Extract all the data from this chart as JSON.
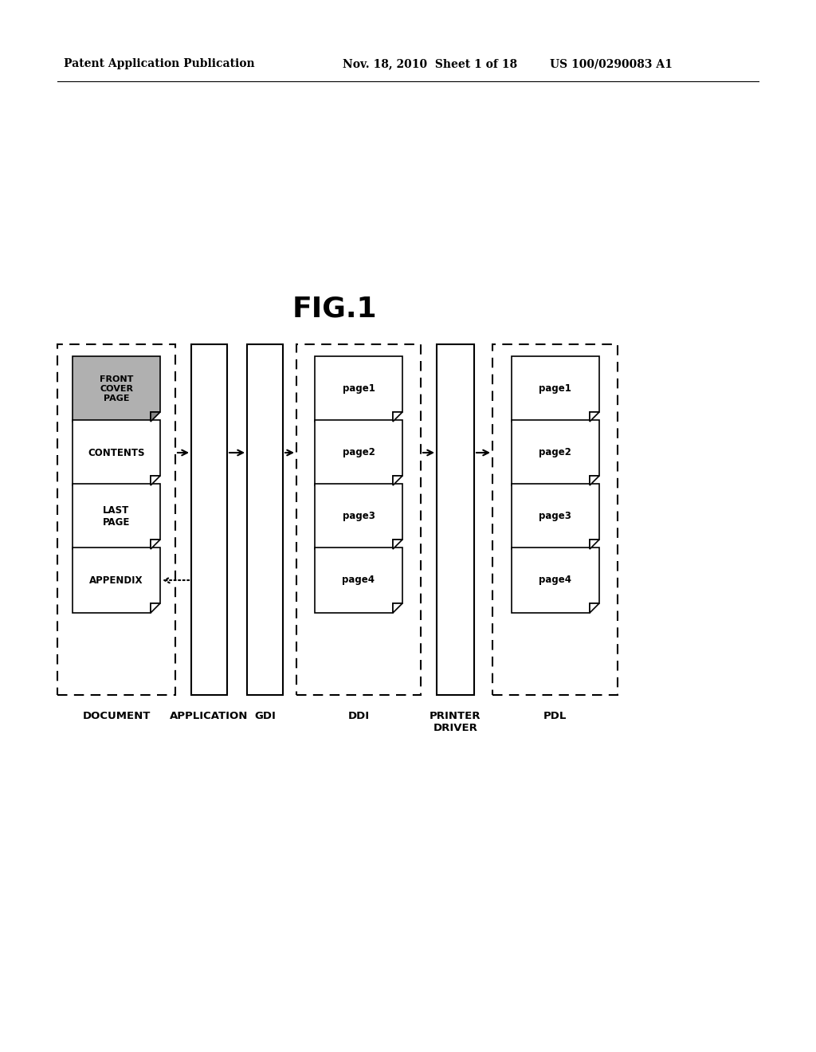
{
  "header_left": "Patent Application Publication",
  "header_mid": "Nov. 18, 2010  Sheet 1 of 18",
  "header_right": "US 100/0290083 A1",
  "title": "FIG.1",
  "background_color": "#ffffff",
  "fig_width": 10.24,
  "fig_height": 13.2,
  "dpi": 100
}
